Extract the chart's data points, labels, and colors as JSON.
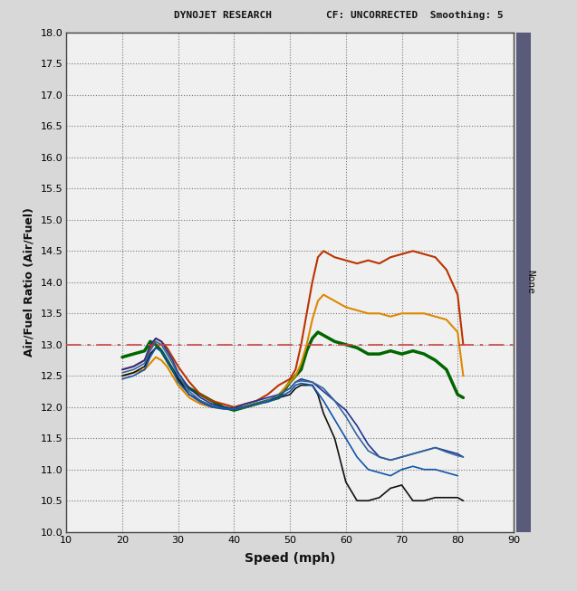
{
  "title_left": "DYNOJET RESEARCH",
  "title_right": "CF: UNCORRECTED  Smoothing: 5",
  "ylabel": "Air/Fuel Ratio (Air/Fuel)",
  "xlabel": "Speed (mph)",
  "right_label": "None",
  "xlim": [
    10,
    90
  ],
  "ylim": [
    10.0,
    18.0
  ],
  "yticks": [
    10.0,
    10.5,
    11.0,
    11.5,
    12.0,
    12.5,
    13.0,
    13.5,
    14.0,
    14.5,
    15.0,
    15.5,
    16.0,
    16.5,
    17.0,
    17.5,
    18.0
  ],
  "xticks": [
    10,
    20,
    30,
    40,
    50,
    60,
    70,
    80,
    90
  ],
  "reference_line_y": 13.0,
  "reference_line_color": "#cc4444",
  "background_color": "#d8d8d8",
  "plot_bg_color": "#f0f0f0",
  "border_color": "#5a5a7a",
  "curves": [
    {
      "color": "#006600",
      "linewidth": 2.5,
      "x": [
        20,
        22,
        24,
        25,
        26,
        27,
        28,
        29,
        30,
        32,
        34,
        36,
        38,
        40,
        42,
        44,
        46,
        48,
        50,
        51,
        52,
        53,
        54,
        55,
        56,
        57,
        58,
        60,
        62,
        64,
        66,
        68,
        70,
        72,
        74,
        75,
        76,
        78,
        80,
        81
      ],
      "y": [
        12.8,
        12.85,
        12.9,
        13.05,
        13.0,
        12.9,
        12.75,
        12.6,
        12.45,
        12.3,
        12.2,
        12.1,
        12.0,
        11.95,
        12.0,
        12.05,
        12.1,
        12.15,
        12.4,
        12.5,
        12.6,
        12.9,
        13.1,
        13.2,
        13.15,
        13.1,
        13.05,
        13.0,
        12.95,
        12.85,
        12.85,
        12.9,
        12.85,
        12.9,
        12.85,
        12.8,
        12.75,
        12.6,
        12.2,
        12.15
      ]
    },
    {
      "color": "#bb3300",
      "linewidth": 1.5,
      "x": [
        20,
        22,
        24,
        25,
        26,
        27,
        28,
        29,
        30,
        32,
        34,
        36,
        38,
        40,
        42,
        44,
        46,
        48,
        50,
        51,
        52,
        53,
        54,
        55,
        56,
        57,
        58,
        60,
        62,
        64,
        66,
        68,
        70,
        72,
        74,
        76,
        78,
        80,
        81
      ],
      "y": [
        12.6,
        12.65,
        12.75,
        12.95,
        13.1,
        13.05,
        12.95,
        12.8,
        12.65,
        12.4,
        12.2,
        12.1,
        12.05,
        12.0,
        12.05,
        12.1,
        12.2,
        12.35,
        12.45,
        12.6,
        13.0,
        13.5,
        14.0,
        14.4,
        14.5,
        14.45,
        14.4,
        14.35,
        14.3,
        14.35,
        14.3,
        14.4,
        14.45,
        14.5,
        14.45,
        14.4,
        14.2,
        13.8,
        13.0
      ]
    },
    {
      "color": "#dd8800",
      "linewidth": 1.5,
      "x": [
        20,
        22,
        24,
        25,
        26,
        27,
        28,
        29,
        30,
        32,
        34,
        36,
        38,
        40,
        42,
        44,
        46,
        48,
        50,
        51,
        52,
        53,
        54,
        55,
        56,
        57,
        58,
        60,
        62,
        64,
        66,
        68,
        70,
        72,
        74,
        76,
        78,
        80,
        81
      ],
      "y": [
        12.5,
        12.55,
        12.6,
        12.7,
        12.8,
        12.75,
        12.65,
        12.5,
        12.35,
        12.15,
        12.05,
        12.0,
        11.98,
        11.97,
        12.0,
        12.05,
        12.1,
        12.2,
        12.4,
        12.5,
        12.7,
        13.0,
        13.4,
        13.7,
        13.8,
        13.75,
        13.7,
        13.6,
        13.55,
        13.5,
        13.5,
        13.45,
        13.5,
        13.5,
        13.5,
        13.45,
        13.4,
        13.2,
        12.5
      ]
    },
    {
      "color": "#223399",
      "linewidth": 1.2,
      "x": [
        20,
        22,
        24,
        25,
        26,
        27,
        28,
        29,
        30,
        32,
        34,
        36,
        38,
        40,
        42,
        44,
        46,
        48,
        50,
        51,
        52,
        54,
        56,
        58,
        60,
        62,
        64,
        66,
        68,
        70,
        72,
        74,
        76,
        78,
        80,
        81
      ],
      "y": [
        12.6,
        12.65,
        12.75,
        13.0,
        13.1,
        13.05,
        12.9,
        12.75,
        12.55,
        12.3,
        12.15,
        12.05,
        12.0,
        11.98,
        12.05,
        12.1,
        12.15,
        12.2,
        12.3,
        12.4,
        12.45,
        12.4,
        12.25,
        12.1,
        11.95,
        11.7,
        11.4,
        11.2,
        11.15,
        11.2,
        11.25,
        11.3,
        11.35,
        11.3,
        11.25,
        11.2
      ]
    },
    {
      "color": "#111111",
      "linewidth": 1.2,
      "x": [
        20,
        22,
        24,
        25,
        26,
        27,
        28,
        29,
        30,
        32,
        34,
        36,
        38,
        40,
        42,
        44,
        46,
        48,
        50,
        51,
        52,
        54,
        55,
        56,
        58,
        60,
        62,
        64,
        66,
        68,
        70,
        72,
        74,
        76,
        78,
        80,
        81
      ],
      "y": [
        12.5,
        12.55,
        12.65,
        12.85,
        12.95,
        12.9,
        12.75,
        12.6,
        12.45,
        12.2,
        12.1,
        12.02,
        11.98,
        11.97,
        12.0,
        12.05,
        12.1,
        12.15,
        12.2,
        12.3,
        12.35,
        12.35,
        12.2,
        11.9,
        11.5,
        10.8,
        10.5,
        10.5,
        10.55,
        10.7,
        10.75,
        10.5,
        10.5,
        10.55,
        10.55,
        10.55,
        10.5
      ]
    },
    {
      "color": "#336699",
      "linewidth": 1.2,
      "x": [
        20,
        22,
        24,
        25,
        26,
        27,
        28,
        29,
        30,
        32,
        34,
        36,
        38,
        40,
        42,
        44,
        46,
        48,
        50,
        51,
        52,
        54,
        56,
        58,
        60,
        62,
        64,
        66,
        68,
        70,
        72,
        74,
        76,
        78,
        80,
        81
      ],
      "y": [
        12.55,
        12.6,
        12.7,
        12.9,
        13.05,
        13.0,
        12.85,
        12.7,
        12.5,
        12.25,
        12.1,
        12.02,
        11.98,
        11.97,
        12.0,
        12.05,
        12.1,
        12.2,
        12.3,
        12.4,
        12.42,
        12.4,
        12.3,
        12.1,
        11.85,
        11.55,
        11.3,
        11.2,
        11.15,
        11.2,
        11.25,
        11.3,
        11.35,
        11.28,
        11.22,
        11.2
      ]
    },
    {
      "color": "#1155aa",
      "linewidth": 1.2,
      "x": [
        20,
        22,
        24,
        25,
        26,
        27,
        28,
        29,
        30,
        32,
        34,
        36,
        38,
        40,
        42,
        44,
        46,
        48,
        50,
        51,
        52,
        54,
        56,
        58,
        60,
        62,
        64,
        66,
        68,
        70,
        72,
        74,
        76,
        78,
        80
      ],
      "y": [
        12.45,
        12.5,
        12.6,
        12.8,
        12.95,
        12.9,
        12.75,
        12.6,
        12.4,
        12.2,
        12.08,
        12.0,
        11.97,
        11.96,
        12.0,
        12.05,
        12.08,
        12.15,
        12.25,
        12.35,
        12.38,
        12.35,
        12.1,
        11.8,
        11.5,
        11.2,
        11.0,
        10.95,
        10.9,
        11.0,
        11.05,
        11.0,
        11.0,
        10.95,
        10.9
      ]
    }
  ]
}
